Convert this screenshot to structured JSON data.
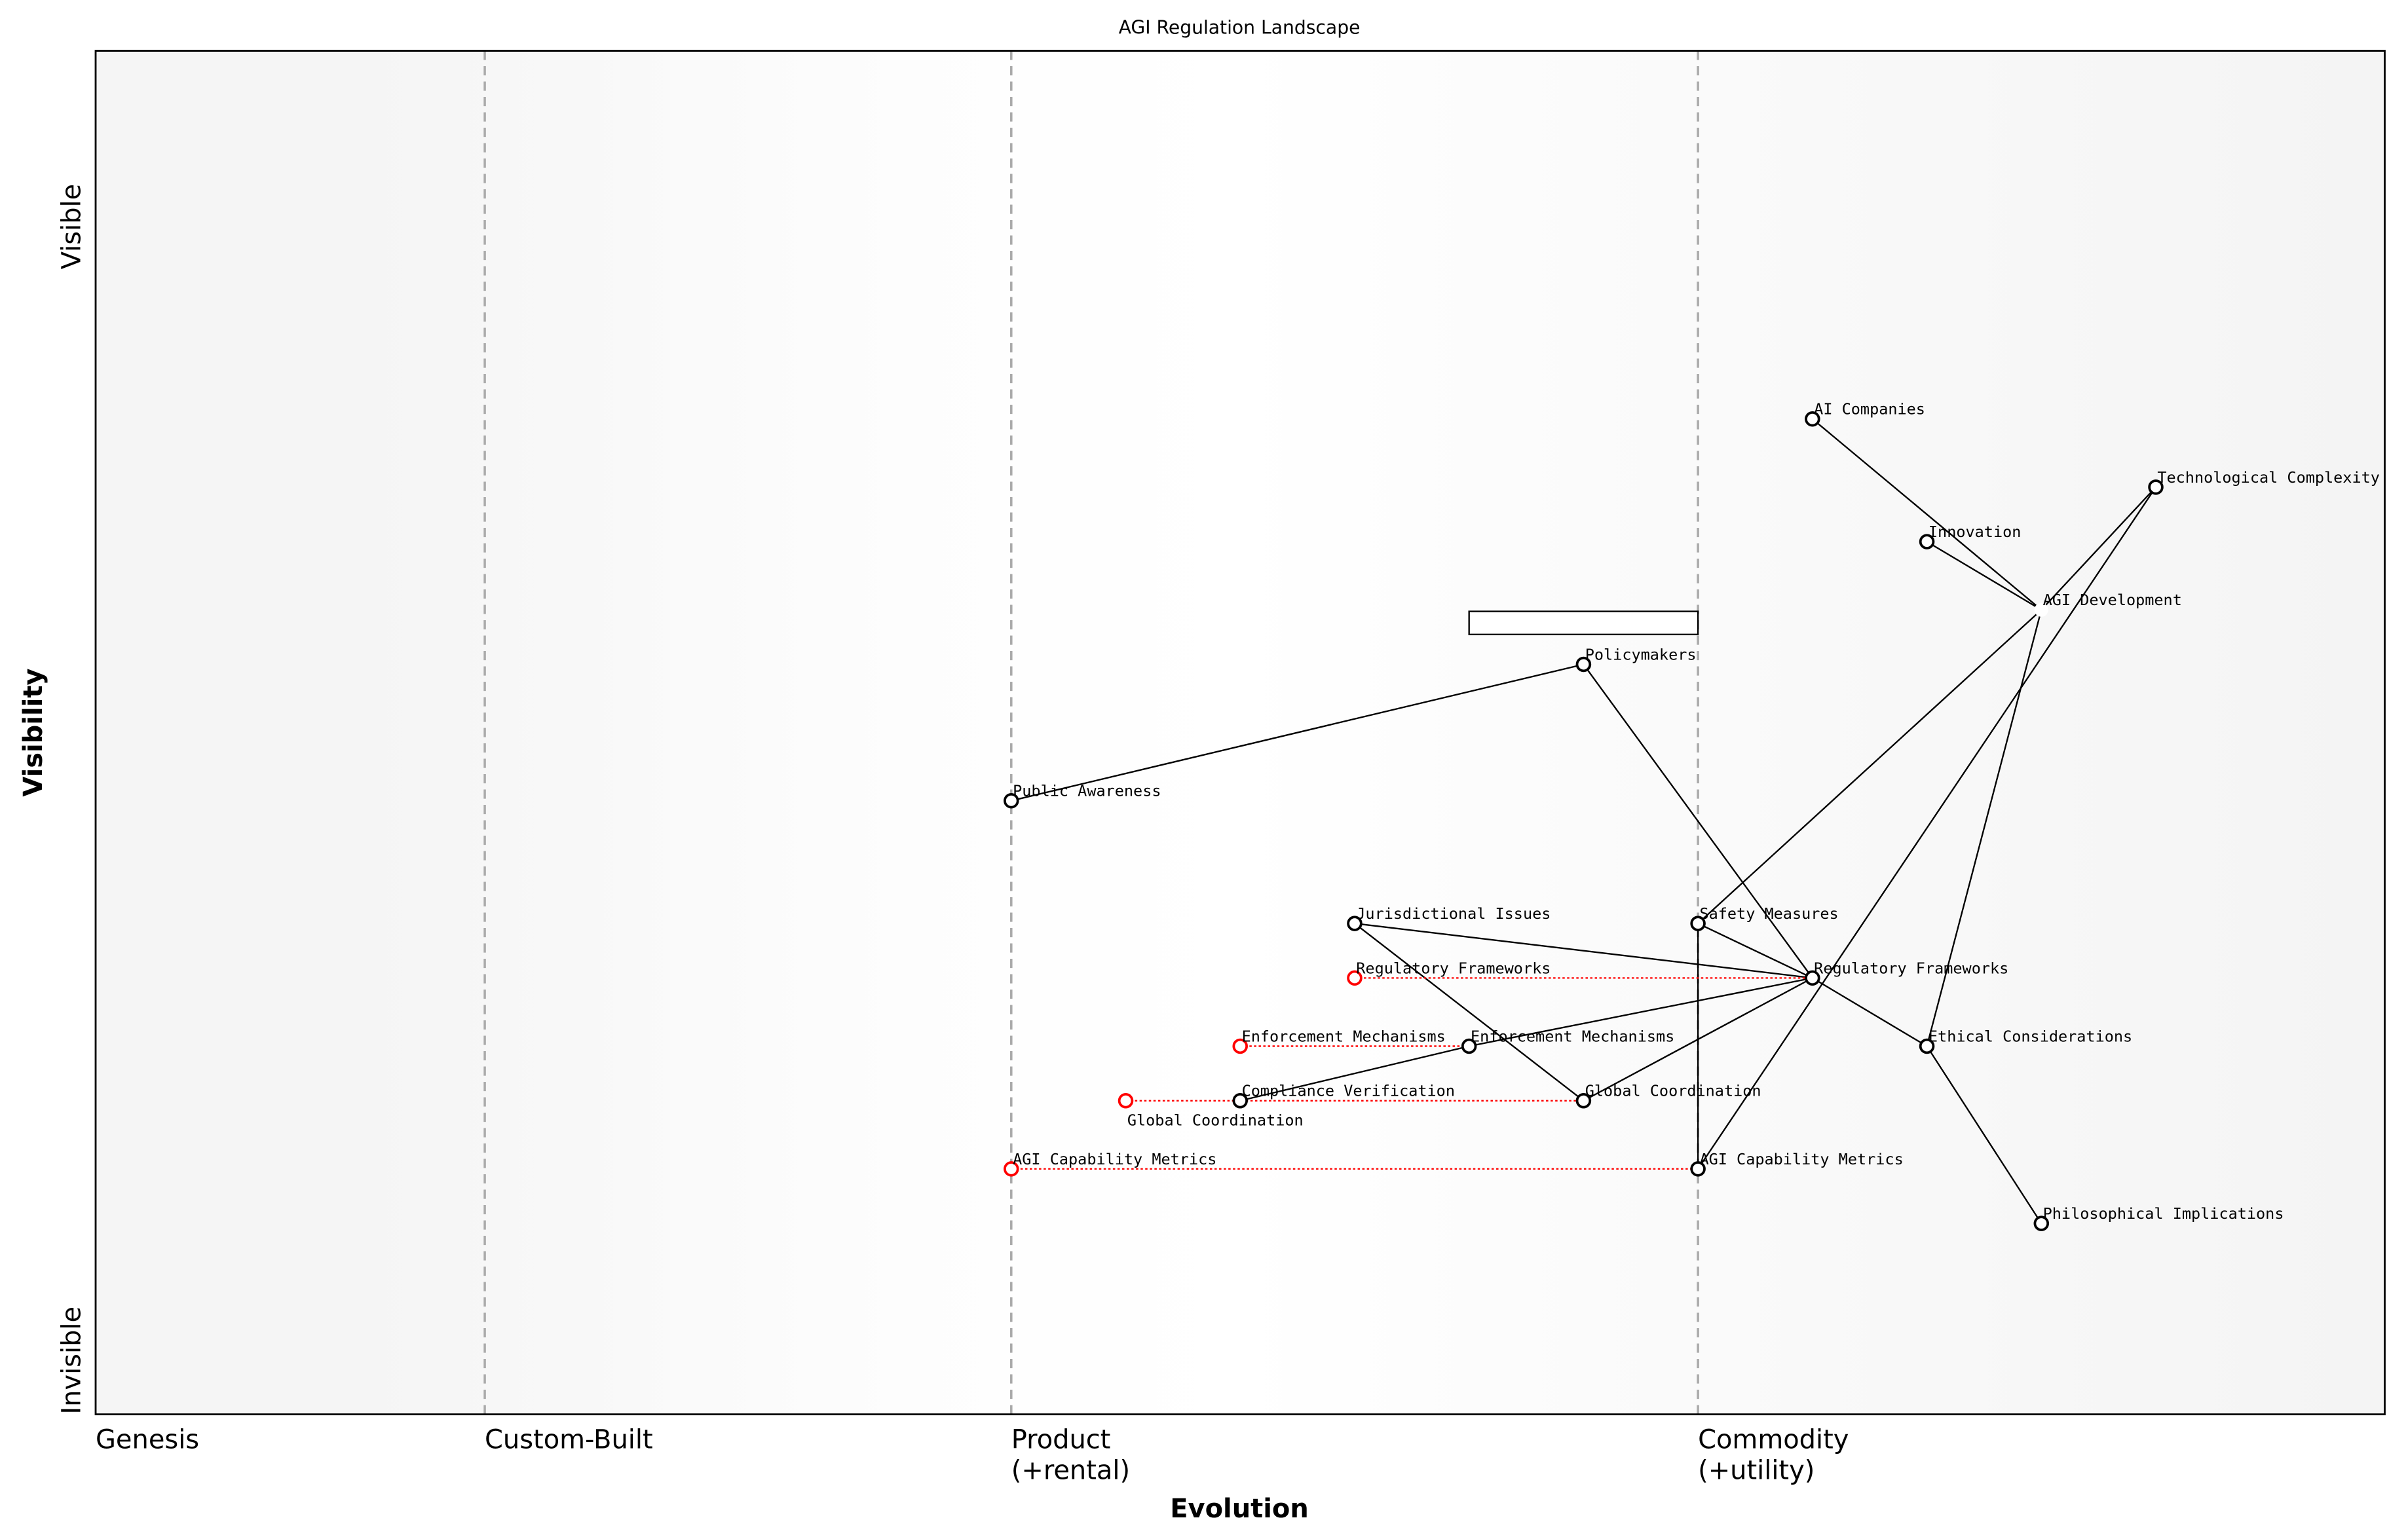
{
  "title": "AGI Regulation Landscape",
  "axes": {
    "x_label": "Evolution",
    "y_label": "Visibility",
    "y_top": "Visible",
    "y_bottom": "Invisible",
    "stages": [
      {
        "line1": "Genesis",
        "line2": "",
        "at": 0.0
      },
      {
        "line1": "Custom-Built",
        "line2": "",
        "at": 0.17
      },
      {
        "line1": "Product",
        "line2": "(+rental)",
        "at": 0.4
      },
      {
        "line1": "Commodity",
        "line2": "(+utility)",
        "at": 0.7
      }
    ]
  },
  "colors": {
    "node": "#000000",
    "evolved_node": "#ff0000",
    "stage_line": "#aaaaaa",
    "band": "#f5f5f5"
  },
  "nodes": [
    {
      "id": "ai_companies",
      "label": "AI Companies",
      "evolution": 0.75,
      "visibility": 0.73
    },
    {
      "id": "tech_complexity",
      "label": "Technological Complexity",
      "evolution": 0.9,
      "visibility": 0.68
    },
    {
      "id": "innovation",
      "label": "Innovation",
      "evolution": 0.8,
      "visibility": 0.64
    },
    {
      "id": "agi_development",
      "label": "AGI Development",
      "evolution": 0.85,
      "visibility": 0.59,
      "hidden_marker": true
    },
    {
      "id": "policymakers",
      "label": "Policymakers",
      "evolution": 0.65,
      "visibility": 0.55
    },
    {
      "id": "public_awareness",
      "label": "Public Awareness",
      "evolution": 0.4,
      "visibility": 0.45
    },
    {
      "id": "jurisdictional",
      "label": "Jurisdictional Issues",
      "evolution": 0.55,
      "visibility": 0.36
    },
    {
      "id": "safety",
      "label": "Safety Measures",
      "evolution": 0.7,
      "visibility": 0.36
    },
    {
      "id": "reg_frameworks",
      "label": "Regulatory Frameworks",
      "evolution": 0.75,
      "visibility": 0.32
    },
    {
      "id": "ethical",
      "label": "Ethical Considerations",
      "evolution": 0.8,
      "visibility": 0.27
    },
    {
      "id": "enforcement",
      "label": "Enforcement Mechanisms",
      "evolution": 0.6,
      "visibility": 0.27
    },
    {
      "id": "compliance",
      "label": "Compliance Verification",
      "evolution": 0.5,
      "visibility": 0.23
    },
    {
      "id": "global_coord",
      "label": "Global Coordination",
      "evolution": 0.65,
      "visibility": 0.23
    },
    {
      "id": "capability_metrics",
      "label": "AGI Capability Metrics",
      "evolution": 0.7,
      "visibility": 0.18
    },
    {
      "id": "philosophical",
      "label": "Philosophical Implications",
      "evolution": 0.85,
      "visibility": 0.14
    }
  ],
  "evolved": [
    {
      "label": "Regulatory Frameworks",
      "evolution": 0.55,
      "target": "reg_frameworks"
    },
    {
      "label": "Enforcement Mechanisms",
      "evolution": 0.5,
      "target": "enforcement"
    },
    {
      "label": "Global Coordination",
      "evolution": 0.45,
      "target": "global_coord"
    },
    {
      "label": "AGI Capability Metrics",
      "evolution": 0.4,
      "target": "capability_metrics"
    }
  ],
  "links": [
    [
      "ai_companies",
      "agi_development"
    ],
    [
      "innovation",
      "agi_development"
    ],
    [
      "tech_complexity",
      "agi_development"
    ],
    [
      "tech_complexity",
      "capability_metrics"
    ],
    [
      "agi_development",
      "safety"
    ],
    [
      "agi_development",
      "ethical"
    ],
    [
      "policymakers",
      "public_awareness"
    ],
    [
      "policymakers",
      "reg_frameworks"
    ],
    [
      "jurisdictional",
      "reg_frameworks"
    ],
    [
      "jurisdictional",
      "global_coord"
    ],
    [
      "safety",
      "reg_frameworks"
    ],
    [
      "safety",
      "capability_metrics"
    ],
    [
      "reg_frameworks",
      "ethical"
    ],
    [
      "reg_frameworks",
      "enforcement"
    ],
    [
      "reg_frameworks",
      "global_coord"
    ],
    [
      "enforcement",
      "compliance"
    ],
    [
      "ethical",
      "philosophical"
    ]
  ],
  "pipeline": {
    "evolution_start": 0.6,
    "evolution_end": 0.7,
    "visibility": 0.59
  }
}
